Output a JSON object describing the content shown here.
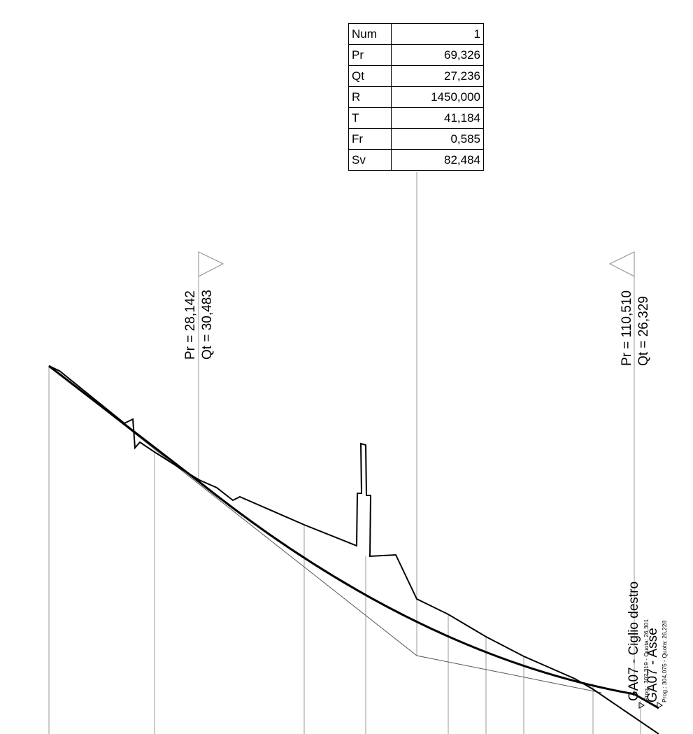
{
  "vertex_table": [
    {
      "key": "Num",
      "value": "1"
    },
    {
      "key": "Pr",
      "value": "69,326"
    },
    {
      "key": "Qt",
      "value": "27,236"
    },
    {
      "key": "R",
      "value": "1450,000"
    },
    {
      "key": "T",
      "value": "41,184"
    },
    {
      "key": "Fr",
      "value": "0,585"
    },
    {
      "key": "Sv",
      "value": "82,484"
    }
  ],
  "tangent_markers": {
    "left": {
      "pr": "Pr = 28,142",
      "qt": "Qt = 30,483"
    },
    "right": {
      "pr": "Pr = 110,510",
      "qt": "Qt = 26,329"
    }
  },
  "end_labels": {
    "ciglio_title": "GA07 - Ciglio destro",
    "ciglio_detail": "Prog.: 302,319 - Quota: 26,301",
    "asse_title": "GA07 - Asse",
    "asse_detail": "Prog.: 304,075 - Quota: 26,228"
  }
}
